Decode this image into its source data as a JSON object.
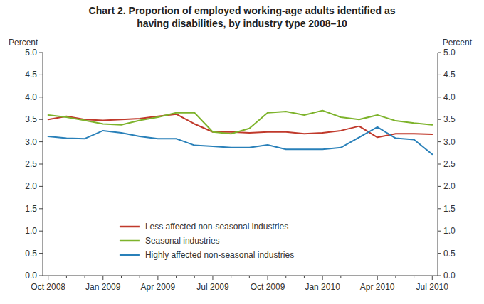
{
  "chart_data": {
    "type": "line",
    "title": "Chart 2.  Proportion of employed working-age adults identified as",
    "subtitle": "having disabilities, by industry type 2008–10",
    "ylabel": "Percent",
    "y2label": "Percent",
    "categories": [
      "Oct 2008",
      null,
      null,
      "Jan 2009",
      null,
      null,
      "Apr 2009",
      null,
      null,
      "Jul 2009",
      null,
      null,
      "Oct 2009",
      null,
      null,
      "Jan 2010",
      null,
      null,
      "Apr 2010",
      null,
      null,
      "Jul 2010"
    ],
    "ylim": [
      0.0,
      5.0
    ],
    "yticks": [
      {
        "value": 0.0,
        "label": "0.0"
      },
      0.5,
      {
        "value": 1.0,
        "label": "1.0"
      },
      1.5,
      {
        "value": 2.0,
        "label": "2.0"
      },
      2.5,
      {
        "value": 3.0,
        "label": "3.0"
      },
      3.5,
      {
        "value": 4.0,
        "label": "4.0"
      },
      4.5,
      {
        "value": 5.0,
        "label": "5.0"
      }
    ],
    "y2lim": [
      0.0,
      5.0
    ],
    "y2ticks": [
      {
        "value": 0.0,
        "label": "0.0"
      },
      0.5,
      {
        "value": 1.0,
        "label": "1.0"
      },
      1.5,
      {
        "value": 2.0,
        "label": "2.0"
      },
      2.5,
      {
        "value": 3.0,
        "label": "3.0"
      },
      3.5,
      {
        "value": 4.0,
        "label": "4.0"
      },
      4.5,
      {
        "value": 5.0,
        "label": "5.0"
      }
    ],
    "grid": false,
    "legend": "lower left",
    "series": [
      {
        "name": "Less affected non-seasonal industries",
        "color": "#c0392b",
        "values": [
          3.5,
          3.57,
          3.5,
          3.48,
          3.5,
          3.52,
          3.57,
          3.62,
          3.4,
          3.22,
          3.22,
          3.2,
          3.22,
          3.22,
          3.18,
          3.2,
          3.25,
          3.35,
          3.1,
          3.18,
          3.18,
          3.17
        ]
      },
      {
        "name": "Seasonal industries",
        "color": "#7db32b",
        "values": [
          3.6,
          3.55,
          3.48,
          3.4,
          3.38,
          3.48,
          3.55,
          3.65,
          3.65,
          3.22,
          3.18,
          3.3,
          3.65,
          3.68,
          3.6,
          3.7,
          3.55,
          3.5,
          3.6,
          3.47,
          3.42,
          3.38
        ]
      },
      {
        "name": "Highly affected non-seasonal industries",
        "color": "#2980b9",
        "values": [
          3.12,
          3.08,
          3.07,
          3.25,
          3.2,
          3.12,
          3.07,
          3.07,
          2.92,
          2.9,
          2.87,
          2.87,
          2.93,
          2.83,
          2.83,
          2.83,
          2.87,
          3.1,
          3.33,
          3.08,
          3.05,
          2.72
        ]
      }
    ]
  }
}
